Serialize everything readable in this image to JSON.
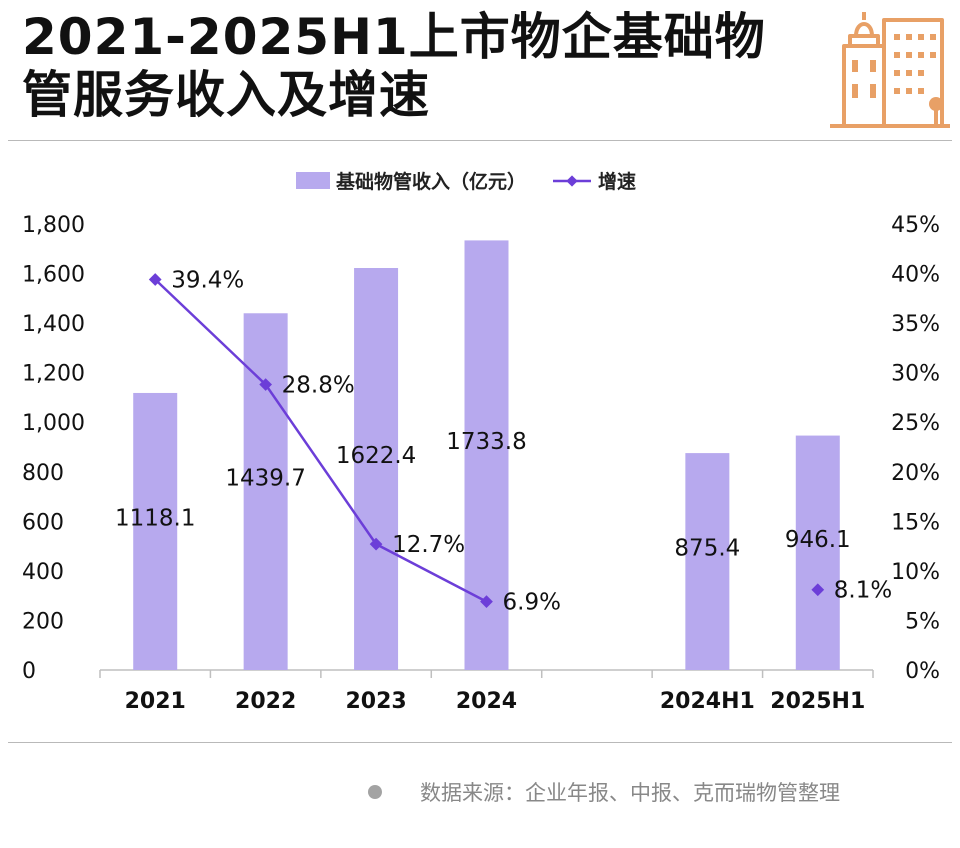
{
  "header": {
    "title_line1": "2021-2025H1上市物企基础物",
    "title_line2": "管服务收入及增速"
  },
  "colors": {
    "bar": "#b7a9ee",
    "line": "#6c3ed8",
    "logo": "#e8a066",
    "axis": "#bfbfbf"
  },
  "logo": {
    "icon": "building-logo-icon"
  },
  "chart_data": {
    "type": "bar",
    "categories": [
      "2021",
      "2022",
      "2023",
      "2024",
      "",
      "2024H1",
      "2025H1"
    ],
    "series": [
      {
        "name": "基础物管收入（亿元）",
        "type": "bar",
        "axis": "left",
        "values": [
          1118.1,
          1439.7,
          1622.4,
          1733.8,
          null,
          875.4,
          946.1
        ],
        "labels": [
          "1118.1",
          "1439.7",
          "1622.4",
          "1733.8",
          "",
          "875.4",
          "946.1"
        ]
      },
      {
        "name": "增速",
        "type": "line",
        "axis": "right",
        "values": [
          39.4,
          28.8,
          12.7,
          6.9,
          null,
          null,
          8.1
        ],
        "labels": [
          "39.4%",
          "28.8%",
          "12.7%",
          "6.9%",
          "",
          "",
          "8.1%"
        ],
        "connect_until_index": 3
      }
    ],
    "y_left": {
      "min": 0,
      "max": 1800,
      "ticks": [
        0,
        200,
        400,
        600,
        800,
        1000,
        1200,
        1400,
        1600,
        1800
      ],
      "tick_labels": [
        "0",
        "200",
        "400",
        "600",
        "800",
        "1,000",
        "1,200",
        "1,400",
        "1,600",
        "1,800"
      ]
    },
    "y_right": {
      "min": 0,
      "max": 45,
      "ticks": [
        0,
        5,
        10,
        15,
        20,
        25,
        30,
        35,
        40,
        45
      ],
      "tick_labels": [
        "0%",
        "5%",
        "10%",
        "15%",
        "20%",
        "25%",
        "30%",
        "35%",
        "40%",
        "45%"
      ]
    },
    "legend": {
      "position": "top-center",
      "items": [
        {
          "label": "基础物管收入（亿元）",
          "kind": "bar"
        },
        {
          "label": "增速",
          "kind": "line"
        }
      ]
    },
    "grid": false
  },
  "footer": {
    "source": "数据来源：企业年报、中报、克而瑞物管整理"
  }
}
